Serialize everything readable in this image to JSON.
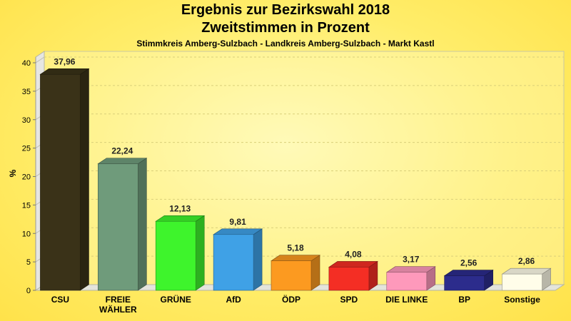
{
  "chart_data": {
    "type": "bar",
    "title": "Ergebnis zur Bezirkswahl 2018",
    "subtitle": "Zweitstimmen in Prozent",
    "subtitle2": "Stimmkreis Amberg-Sulzbach - Landkreis Amberg-Sulzbach - Markt Kastl",
    "ylabel": "%",
    "xlabel": "",
    "ylim": [
      0,
      40
    ],
    "yticks": [
      0,
      5,
      10,
      15,
      20,
      25,
      30,
      35,
      40
    ],
    "grid": true,
    "categories": [
      [
        "CSU"
      ],
      [
        "FREIE",
        "WÄHLER"
      ],
      [
        "GRÜNE"
      ],
      [
        "AfD"
      ],
      [
        "ÖDP"
      ],
      [
        "SPD"
      ],
      [
        "DIE LINKE"
      ],
      [
        "BP"
      ],
      [
        "Sonstige"
      ]
    ],
    "values": [
      37.96,
      22.24,
      12.13,
      9.81,
      5.18,
      4.08,
      3.17,
      2.56,
      2.86
    ],
    "value_labels": [
      "37,96",
      "22,24",
      "12,13",
      "9,81",
      "5,18",
      "4,08",
      "3,17",
      "2,56",
      "2,86"
    ],
    "colors": [
      "#3a3218",
      "#6f9b7b",
      "#3ef42c",
      "#3fa1e6",
      "#fc9a20",
      "#f42e24",
      "#fe99bb",
      "#2c2c8c",
      "#fffde9"
    ]
  }
}
